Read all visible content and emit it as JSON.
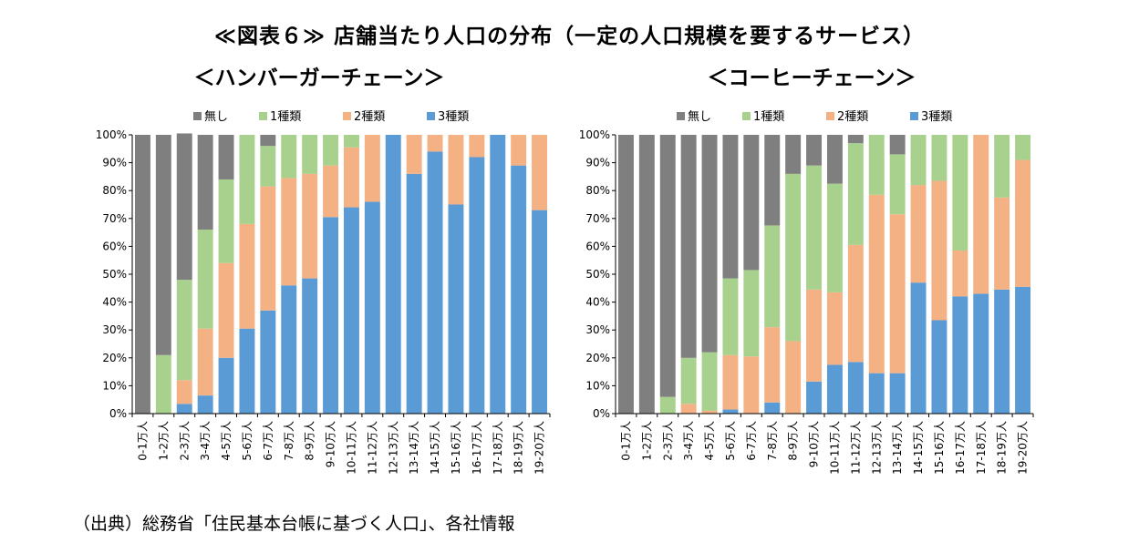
{
  "page": {
    "title": "≪図表６≫ 店舗当たり人口の分布（一定の人口規模を要するサービス）",
    "source": "（出典）総務省「住民基本台帳に基づく人口」、各社情報"
  },
  "colors": {
    "無し": "#7f7f7f",
    "1種類": "#a9d18e",
    "2種類": "#f4b183",
    "3種類": "#5b9bd5"
  },
  "chart_data": [
    {
      "type": "bar",
      "stacked": true,
      "title": "＜ハンバーガーチェーン＞",
      "categories": [
        "0-1万人",
        "1-2万人",
        "2-3万人",
        "3-4万人",
        "4-5万人",
        "5-6万人",
        "6-7万人",
        "7-8万人",
        "8-9万人",
        "9-10万人",
        "10-11万人",
        "11-12万人",
        "12-13万人",
        "13-14万人",
        "14-15万人",
        "15-16万人",
        "16-17万人",
        "17-18万人",
        "18-19万人",
        "19-20万人"
      ],
      "ylim": [
        0,
        100
      ],
      "yticks": [
        "0%",
        "10%",
        "20%",
        "30%",
        "40%",
        "50%",
        "60%",
        "70%",
        "80%",
        "90%",
        "100%"
      ],
      "legend": [
        "無し",
        "1種類",
        "2種類",
        "3種類"
      ],
      "legend_position": "top",
      "series": [
        {
          "name": "3種類",
          "values": [
            0,
            0,
            3.5,
            6.5,
            20,
            30.5,
            37,
            46,
            48.5,
            70.5,
            74,
            76,
            100,
            86,
            94,
            75,
            92,
            100,
            89,
            73
          ]
        },
        {
          "name": "2種類",
          "values": [
            0,
            0,
            8.5,
            24,
            34,
            37.5,
            44.5,
            38.5,
            37.5,
            18.5,
            21.5,
            24,
            0,
            14,
            6,
            25,
            8,
            0,
            11,
            27
          ]
        },
        {
          "name": "1種類",
          "values": [
            0,
            21,
            36,
            35.5,
            30,
            32,
            14.5,
            15.5,
            14,
            11,
            4.5,
            0,
            0,
            0,
            0,
            0,
            0,
            0,
            0,
            0
          ]
        },
        {
          "name": "無し",
          "values": [
            100,
            79,
            52.5,
            34,
            16,
            0,
            4,
            0,
            0,
            0,
            0,
            0,
            0,
            0,
            0,
            0,
            0,
            0,
            0,
            0
          ]
        }
      ]
    },
    {
      "type": "bar",
      "stacked": true,
      "title": "＜コーヒーチェーン＞",
      "categories": [
        "0-1万人",
        "1-2万人",
        "2-3万人",
        "3-4万人",
        "4-5万人",
        "5-6万人",
        "6-7万人",
        "7-8万人",
        "8-9万人",
        "9-10万人",
        "10-11万人",
        "11-12万人",
        "12-13万人",
        "13-14万人",
        "14-15万人",
        "15-16万人",
        "16-17万人",
        "17-18万人",
        "18-19万人",
        "19-20万人"
      ],
      "ylim": [
        0,
        100
      ],
      "yticks": [
        "0%",
        "10%",
        "20%",
        "30%",
        "40%",
        "50%",
        "60%",
        "70%",
        "80%",
        "90%",
        "100%"
      ],
      "legend": [
        "無し",
        "1種類",
        "2種類",
        "3種類"
      ],
      "legend_position": "top",
      "series": [
        {
          "name": "3種類",
          "values": [
            0,
            0,
            0,
            0,
            0,
            1.5,
            0,
            4,
            0,
            11.5,
            17.5,
            18.5,
            14.5,
            14.5,
            47,
            33.5,
            42,
            43,
            44.5,
            45.5
          ]
        },
        {
          "name": "2種類",
          "values": [
            0,
            0,
            0,
            3.5,
            1,
            19.5,
            20.5,
            27,
            26,
            33,
            26,
            42,
            64,
            57,
            35,
            50,
            16.5,
            57,
            33,
            45.5
          ]
        },
        {
          "name": "1種類",
          "values": [
            0,
            0,
            6,
            16.5,
            21,
            27.5,
            31,
            36.5,
            60,
            44.5,
            39,
            36.5,
            21.5,
            21.5,
            18,
            16.5,
            41.5,
            0,
            22.5,
            9
          ]
        },
        {
          "name": "無し",
          "values": [
            100,
            100,
            94,
            80,
            78,
            51.5,
            48.5,
            32.5,
            14,
            11,
            17.5,
            3,
            0,
            7,
            0,
            0,
            0,
            0,
            0,
            0
          ]
        }
      ]
    }
  ]
}
